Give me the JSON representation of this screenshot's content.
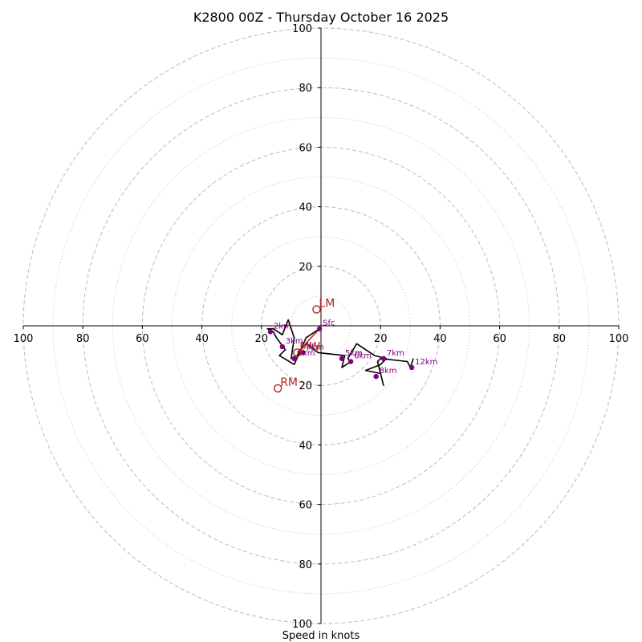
{
  "chart_data": {
    "type": "scatter",
    "subtype": "hodograph",
    "title": "K2800 00Z - Thursday October 16 2025",
    "xlabel": "Speed in knots",
    "max_speed": 100,
    "rings": {
      "dashed": [
        20,
        40,
        60,
        80,
        100
      ],
      "dotted": [
        10,
        30,
        50,
        70,
        90
      ]
    },
    "ticks": {
      "x": [
        {
          "v": -100,
          "label": "100"
        },
        {
          "v": -80,
          "label": "80"
        },
        {
          "v": -60,
          "label": "60"
        },
        {
          "v": -40,
          "label": "40"
        },
        {
          "v": -20,
          "label": "20"
        },
        {
          "v": 20,
          "label": "20"
        },
        {
          "v": 40,
          "label": "40"
        },
        {
          "v": 60,
          "label": "60"
        },
        {
          "v": 80,
          "label": "80"
        },
        {
          "v": 100,
          "label": "100"
        }
      ],
      "y": [
        {
          "v": 100,
          "label": "100"
        },
        {
          "v": 80,
          "label": "80"
        },
        {
          "v": 60,
          "label": "60"
        },
        {
          "v": 40,
          "label": "40"
        },
        {
          "v": 20,
          "label": "20"
        },
        {
          "v": -20,
          "label": "20"
        },
        {
          "v": -40,
          "label": "40"
        },
        {
          "v": -60,
          "label": "60"
        },
        {
          "v": -80,
          "label": "80"
        },
        {
          "v": -100,
          "label": "100"
        }
      ]
    },
    "hodograph_trace": [
      [
        -0.5,
        -1
      ],
      [
        -5,
        -4
      ],
      [
        -9,
        -13
      ],
      [
        -14,
        -10
      ],
      [
        -12,
        -8
      ],
      [
        -15,
        -4
      ],
      [
        -16,
        -2
      ],
      [
        -18,
        -1
      ],
      [
        -16,
        -1
      ],
      [
        -13,
        -3
      ],
      [
        -11,
        2
      ],
      [
        -9,
        -4
      ],
      [
        -10,
        -11
      ],
      [
        -8,
        -10
      ],
      [
        -6,
        -7
      ],
      [
        -5,
        -6
      ],
      [
        -1,
        -9
      ],
      [
        8,
        -10
      ],
      [
        7,
        -14
      ],
      [
        10,
        -12
      ],
      [
        9,
        -11
      ],
      [
        12,
        -6
      ],
      [
        18,
        -10
      ],
      [
        22,
        -11
      ],
      [
        20,
        -13
      ],
      [
        15,
        -15
      ],
      [
        20,
        -16
      ],
      [
        21,
        -20
      ],
      [
        19,
        -12
      ],
      [
        20,
        -11
      ],
      [
        29,
        -12
      ],
      [
        30,
        -14
      ],
      [
        31,
        -11
      ]
    ],
    "height_markers": [
      {
        "label": "Sfc",
        "u": -0.5,
        "v": -1
      },
      {
        "label": "1km",
        "u": -9,
        "v": -11
      },
      {
        "label": "2km",
        "u": -17,
        "v": -2
      },
      {
        "label": "3km",
        "u": -13,
        "v": -7
      },
      {
        "label": "4km",
        "u": -6,
        "v": -9
      },
      {
        "label": "5km",
        "u": 7,
        "v": -11
      },
      {
        "label": "6km",
        "u": 10,
        "v": -12
      },
      {
        "label": "7km",
        "u": 21,
        "v": -11
      },
      {
        "label": "8km",
        "u": 18.5,
        "v": -17
      },
      {
        "label": "12km",
        "u": 30.5,
        "v": -14
      }
    ],
    "storm_motion": {
      "mean_wind_line": [
        [
          -0.5,
          -1
        ],
        [
          -8,
          -9
        ]
      ],
      "markers": [
        {
          "label": "LM",
          "u": -1.5,
          "v": 5.5
        },
        {
          "label": "MW",
          "u": -8,
          "v": -9
        },
        {
          "label": "RM",
          "u": -14.5,
          "v": -21
        }
      ]
    },
    "colors": {
      "trace": "#000000",
      "height_point": "#800080",
      "storm_marker": "#b22222",
      "mean_wind_line": "#e31a1c",
      "grid": "#bbbbbb",
      "axes": "#000000"
    }
  }
}
